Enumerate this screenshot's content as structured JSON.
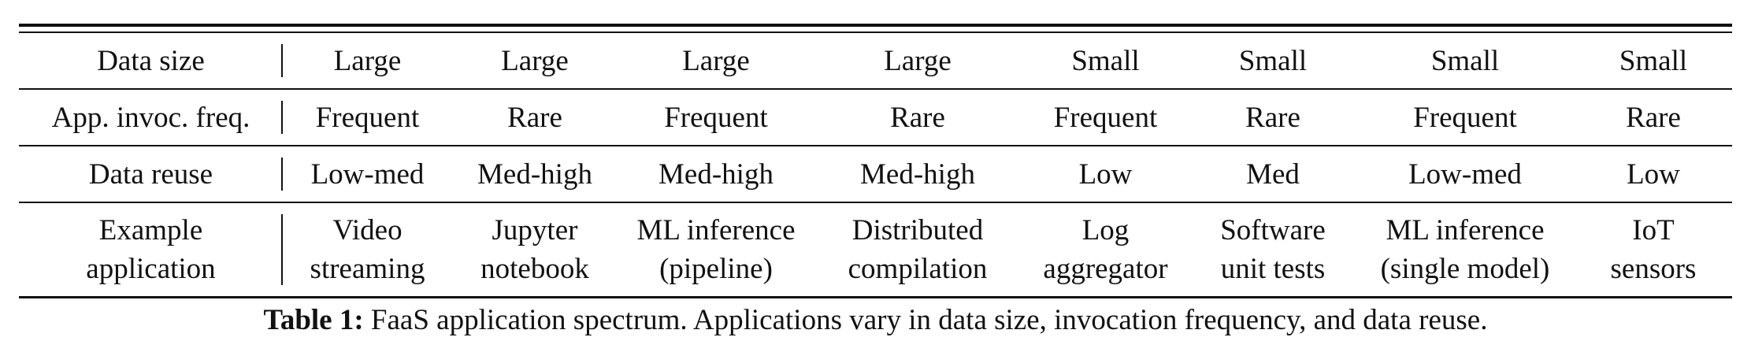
{
  "table": {
    "rows": [
      {
        "header": [
          "Data size"
        ],
        "cells": [
          [
            "Large"
          ],
          [
            "Large"
          ],
          [
            "Large"
          ],
          [
            "Large"
          ],
          [
            "Small"
          ],
          [
            "Small"
          ],
          [
            "Small"
          ],
          [
            "Small"
          ]
        ]
      },
      {
        "header": [
          "App. invoc. freq."
        ],
        "cells": [
          [
            "Frequent"
          ],
          [
            "Rare"
          ],
          [
            "Frequent"
          ],
          [
            "Rare"
          ],
          [
            "Frequent"
          ],
          [
            "Rare"
          ],
          [
            "Frequent"
          ],
          [
            "Rare"
          ]
        ]
      },
      {
        "header": [
          "Data reuse"
        ],
        "cells": [
          [
            "Low-med"
          ],
          [
            "Med-high"
          ],
          [
            "Med-high"
          ],
          [
            "Med-high"
          ],
          [
            "Low"
          ],
          [
            "Med"
          ],
          [
            "Low-med"
          ],
          [
            "Low"
          ]
        ]
      },
      {
        "header": [
          "Example",
          "application"
        ],
        "cells": [
          [
            "Video",
            "streaming"
          ],
          [
            "Jupyter",
            "notebook"
          ],
          [
            "ML inference",
            "(pipeline)"
          ],
          [
            "Distributed",
            "compilation"
          ],
          [
            "Log",
            "aggregator"
          ],
          [
            "Software",
            "unit tests"
          ],
          [
            "ML inference",
            "(single model)"
          ],
          [
            "IoT",
            "sensors"
          ]
        ]
      }
    ]
  },
  "caption": {
    "label": "Table 1:",
    "text": " FaaS application spectrum. Applications vary in data size, invocation frequency, and data reuse."
  }
}
